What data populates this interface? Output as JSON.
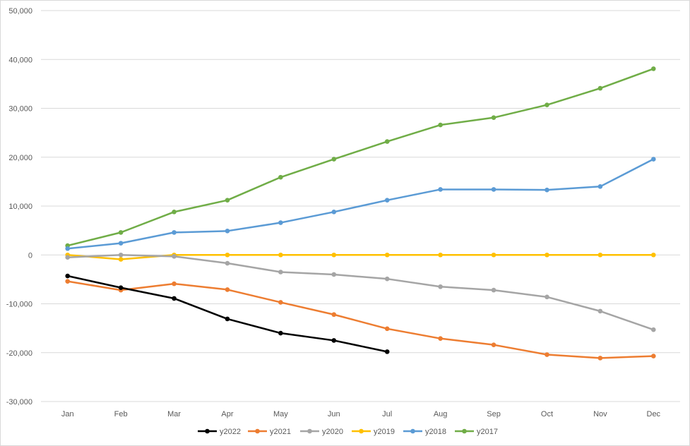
{
  "chart_data": {
    "type": "line",
    "title": "",
    "xlabel": "",
    "ylabel": "",
    "categories": [
      "Jan",
      "Feb",
      "Mar",
      "Apr",
      "May",
      "Jun",
      "Jul",
      "Aug",
      "Sep",
      "Oct",
      "Nov",
      "Dec"
    ],
    "ylim": [
      -30000,
      50000
    ],
    "yticks": [
      -30000,
      -20000,
      -10000,
      0,
      10000,
      20000,
      30000,
      40000,
      50000
    ],
    "ytick_labels": [
      "-30,000",
      "-20,000",
      "-10,000",
      "0",
      "10,000",
      "20,000",
      "30,000",
      "40,000",
      "50,000"
    ],
    "grid": true,
    "legend_position": "bottom",
    "series": [
      {
        "name": "y2022",
        "color": "#000000",
        "values": [
          -4300,
          -6700,
          -8900,
          -13100,
          -16000,
          -17500,
          -19800,
          null,
          null,
          null,
          null,
          null
        ]
      },
      {
        "name": "y2021",
        "color": "#ED7D31",
        "values": [
          -5400,
          -7200,
          -5900,
          -7100,
          -9700,
          -12200,
          -15100,
          -17100,
          -18400,
          -20400,
          -21100,
          -20700
        ]
      },
      {
        "name": "y2020",
        "color": "#A5A5A5",
        "values": [
          -500,
          0,
          -300,
          -1700,
          -3500,
          -4000,
          -4900,
          -6500,
          -7200,
          -8600,
          -11500,
          -15300
        ]
      },
      {
        "name": "y2019",
        "color": "#FFC000",
        "values": [
          0,
          -900,
          0,
          0,
          0,
          0,
          0,
          0,
          0,
          0,
          0,
          0
        ]
      },
      {
        "name": "y2018",
        "color": "#5B9BD5",
        "values": [
          1300,
          2400,
          4600,
          4900,
          6600,
          8800,
          11200,
          13400,
          13400,
          13300,
          14000,
          19600
        ]
      },
      {
        "name": "y2017",
        "color": "#70AD47",
        "values": [
          1900,
          4600,
          8800,
          11200,
          15900,
          19600,
          23200,
          26600,
          28100,
          30700,
          34100,
          38100
        ]
      }
    ]
  }
}
